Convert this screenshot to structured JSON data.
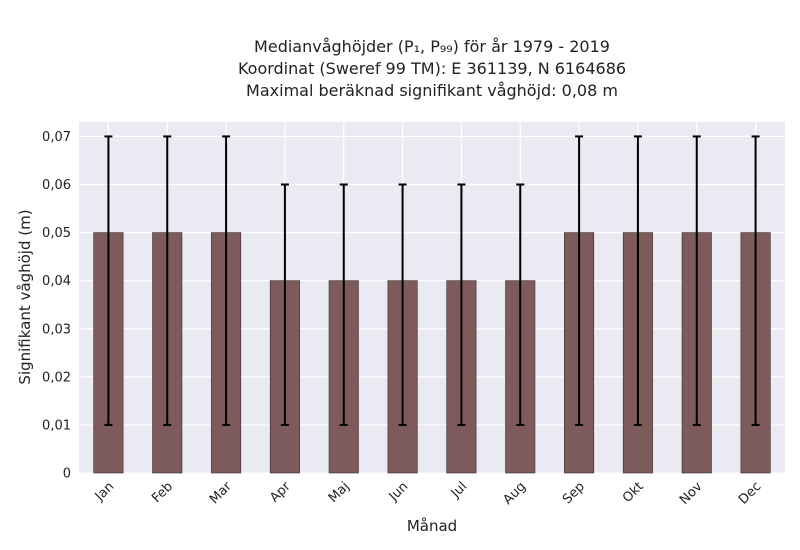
{
  "chart_data": {
    "type": "bar",
    "title_lines": [
      "Medianvåghöjder (P₁, P₉₉) för år 1979 - 2019",
      "Koordinat (Sweref 99 TM): E 361139, N 6164686",
      "Maximal beräknad signifikant våghöjd: 0,08 m"
    ],
    "xlabel": "Månad",
    "ylabel": "Signifikant våghöjd (m)",
    "categories": [
      "Jan",
      "Feb",
      "Mar",
      "Apr",
      "Maj",
      "Jun",
      "Jul",
      "Aug",
      "Sep",
      "Okt",
      "Nov",
      "Dec"
    ],
    "values": [
      0.05,
      0.05,
      0.05,
      0.04,
      0.04,
      0.04,
      0.04,
      0.04,
      0.05,
      0.05,
      0.05,
      0.05
    ],
    "error_low": [
      0.01,
      0.01,
      0.01,
      0.01,
      0.01,
      0.01,
      0.01,
      0.01,
      0.01,
      0.01,
      0.01,
      0.01
    ],
    "error_high": [
      0.07,
      0.07,
      0.07,
      0.06,
      0.06,
      0.06,
      0.06,
      0.06,
      0.07,
      0.07,
      0.07,
      0.07
    ],
    "ylim": [
      0,
      0.073
    ],
    "yticks": [
      0,
      0.01,
      0.02,
      0.03,
      0.04,
      0.05,
      0.06,
      0.07
    ],
    "ytick_labels": [
      "0",
      "0,01",
      "0,02",
      "0,03",
      "0,04",
      "0,05",
      "0,06",
      "0,07"
    ],
    "grid": true,
    "colors": {
      "bar": "#7d5b5b",
      "bar_edge": "#3a2a2a",
      "error": "#000000",
      "plot_background": "#eaeaf2",
      "grid": "#ffffff"
    }
  }
}
